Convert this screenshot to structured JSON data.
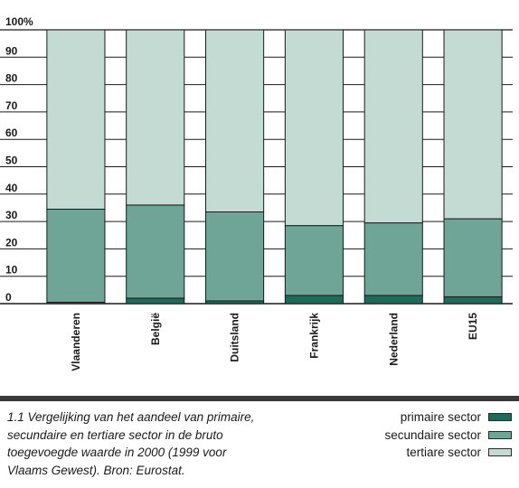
{
  "chart_data": {
    "type": "bar",
    "stacked": true,
    "categories": [
      "Vlaanderen",
      "België",
      "Duitsland",
      "Frankrijk",
      "Nederland",
      "EU15"
    ],
    "series": [
      {
        "name": "primaire sector",
        "color": "#1f6b5a",
        "values": [
          0.5,
          2,
          1,
          3,
          3,
          2.5
        ]
      },
      {
        "name": "secundaire sector",
        "color": "#6fa596",
        "values": [
          34,
          34,
          32.5,
          25.5,
          26.5,
          28.5
        ]
      },
      {
        "name": "tertiaire sector",
        "color": "#c4dbd4",
        "values": [
          65.5,
          64,
          66.5,
          71.5,
          70.5,
          69
        ]
      }
    ],
    "ylim": [
      0,
      100
    ],
    "yticks": [
      "0",
      "10",
      "20",
      "30",
      "40",
      "50",
      "60",
      "70",
      "80",
      "90",
      "100%"
    ],
    "grid": true,
    "legend_position": "bottom-right"
  },
  "caption": {
    "lines": [
      "1.1 Vergelijking van het aandeel van primaire,",
      "secundaire en tertiare sector in de bruto",
      "toegevoegde waarde in 2000 (1999 voor",
      "Vlaams Gewest). Bron: Eurostat."
    ]
  },
  "legend": {
    "items": [
      {
        "label": "primaire sector",
        "color": "#1f6b5a"
      },
      {
        "label": "secundaire sector",
        "color": "#6fa596"
      },
      {
        "label": "tertiare sector",
        "color": "#c4dbd4"
      }
    ]
  }
}
